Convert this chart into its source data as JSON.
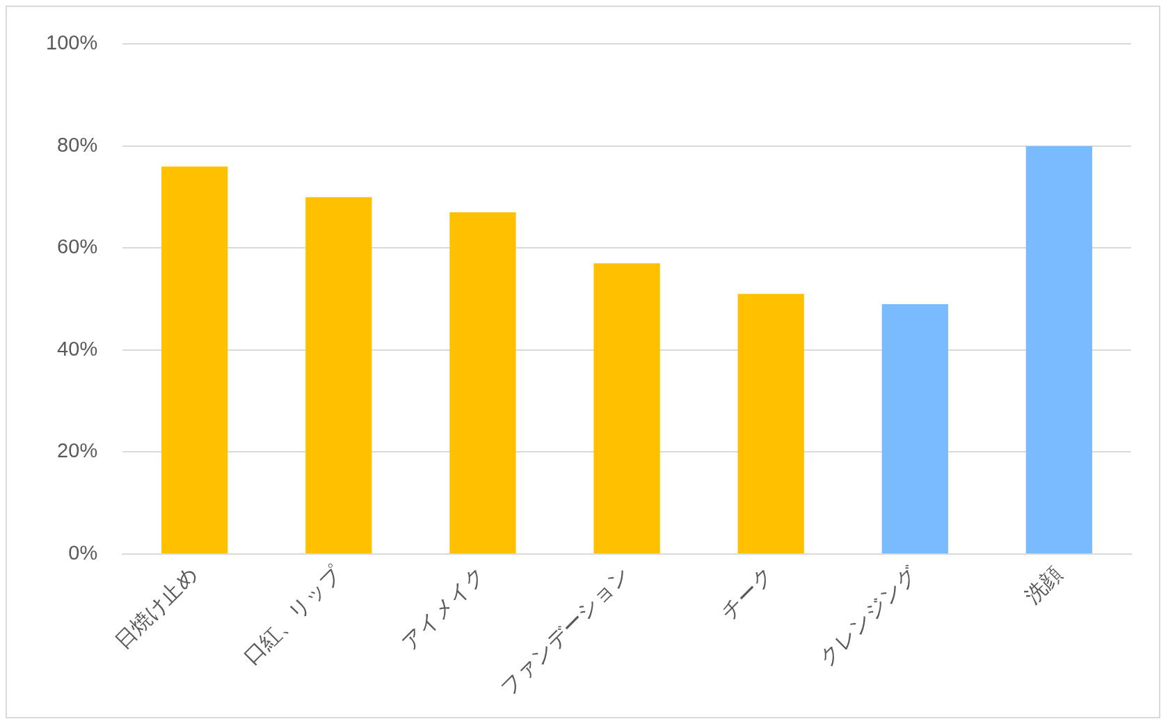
{
  "chart_data": {
    "type": "bar",
    "categories": [
      "日焼け止め",
      "口紅、リップ",
      "アイメイク",
      "ファンデーション",
      "チーク",
      "クレンジング",
      "洗顔"
    ],
    "values": [
      76,
      70,
      67,
      57,
      51,
      49,
      80
    ],
    "colors": [
      "#ffc000",
      "#ffc000",
      "#ffc000",
      "#ffc000",
      "#ffc000",
      "#7abaff",
      "#7abaff"
    ],
    "ylim": [
      0,
      100
    ],
    "yticks": [
      {
        "value": 0,
        "label": "0%"
      },
      {
        "value": 20,
        "label": "20%"
      },
      {
        "value": 40,
        "label": "40%"
      },
      {
        "value": 60,
        "label": "60%"
      },
      {
        "value": 80,
        "label": "80%"
      },
      {
        "value": 100,
        "label": "100%"
      }
    ],
    "grid": "y",
    "legend": false
  }
}
